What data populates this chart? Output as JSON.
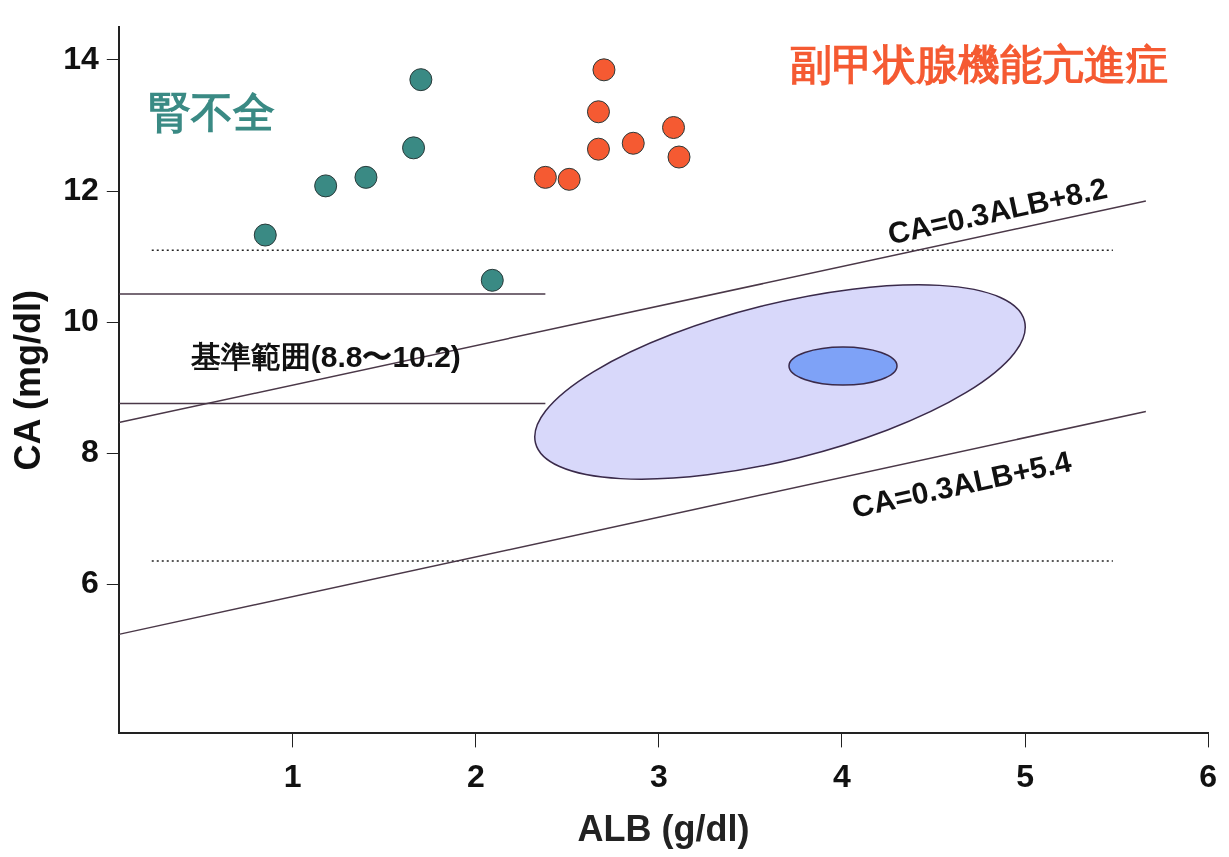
{
  "chart_data": {
    "type": "scatter",
    "xlabel": "ALB (g/dl)",
    "ylabel": "CA (mg/dl)",
    "xlim": [
      0.05,
      6
    ],
    "xticks": [
      1,
      2,
      3,
      4,
      5,
      6
    ],
    "ylim": [
      3.73,
      14.5
    ],
    "yticks": [
      6,
      8,
      10,
      12,
      14
    ],
    "grid": false,
    "legend": false,
    "marker": "circle",
    "series": [
      {
        "name": "腎不全",
        "color": "#3a8a84",
        "x": [
          0.85,
          1.18,
          1.4,
          1.66,
          1.7,
          2.09
        ],
        "values": [
          11.33,
          12.08,
          12.21,
          12.66,
          13.7,
          10.64
        ]
      },
      {
        "name": "副甲状腺機能亢進症",
        "color": "#f55a32",
        "x": [
          2.38,
          2.51,
          2.67,
          2.67,
          2.7,
          2.86,
          3.08,
          3.11
        ],
        "values": [
          12.21,
          12.18,
          12.64,
          13.21,
          13.85,
          12.73,
          12.97,
          12.52
        ]
      },
      {
        "type": "line",
        "marker": "none",
        "color": "#4a3848",
        "x": [
          0.05,
          5.66
        ],
        "values": [
          8.47,
          11.85
        ]
      },
      {
        "type": "line",
        "marker": "none",
        "color": "#4a3848",
        "x": [
          0.05,
          5.66
        ],
        "values": [
          5.24,
          8.64
        ]
      },
      {
        "type": "line",
        "marker": "none",
        "color": "#4a3848",
        "x": [
          0.05,
          2.38
        ],
        "values": [
          10.43,
          10.43
        ]
      },
      {
        "type": "line",
        "marker": "none",
        "color": "#4a3848",
        "x": [
          0.05,
          2.38
        ],
        "values": [
          8.76,
          8.76
        ]
      },
      {
        "type": "line",
        "marker": "none",
        "line_style": "dotted",
        "color": "#222222",
        "x": [
          0.23,
          5.48
        ],
        "values": [
          11.1,
          11.1
        ]
      },
      {
        "type": "line",
        "marker": "none",
        "line_style": "dotted",
        "color": "#222222",
        "x": [
          0.23,
          5.48
        ],
        "values": [
          6.36,
          6.36
        ]
      }
    ],
    "annotations": [
      "CA=0.3ALB+8.2",
      "CA=0.3ALB+5.4",
      "基準範囲(8.8〜10.2)"
    ]
  }
}
